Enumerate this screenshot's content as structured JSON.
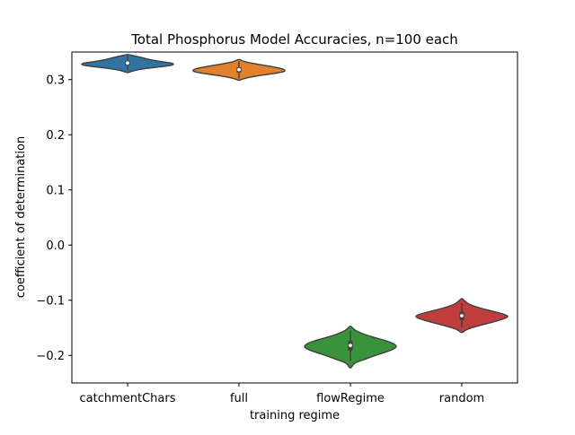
{
  "chart_data": {
    "type": "violin",
    "title": "Total Phosphorus Model Accuracies, n=100 each",
    "xlabel": "training regime",
    "ylabel": "coefficient of determination",
    "ylim": [
      -0.25,
      0.35
    ],
    "yticks": [
      -0.2,
      -0.1,
      0.0,
      0.1,
      0.2,
      0.3
    ],
    "ytick_labels": [
      "−0.2",
      "−0.1",
      "0.0",
      "0.1",
      "0.2",
      "0.3"
    ],
    "grid": false,
    "categories": [
      "catchmentChars",
      "full",
      "flowRegime",
      "random"
    ],
    "series": [
      {
        "category": "catchmentChars",
        "color": "#3274a1",
        "median": 0.33,
        "q1": 0.326,
        "q3": 0.334,
        "whisker_low": 0.317,
        "whisker_high": 0.343,
        "density": [
          [
            0.313,
            0.02
          ],
          [
            0.317,
            0.18
          ],
          [
            0.32,
            0.4
          ],
          [
            0.323,
            0.7
          ],
          [
            0.326,
            0.95
          ],
          [
            0.328,
            1.0
          ],
          [
            0.33,
            0.95
          ],
          [
            0.333,
            0.7
          ],
          [
            0.336,
            0.5
          ],
          [
            0.339,
            0.36
          ],
          [
            0.342,
            0.2
          ],
          [
            0.345,
            0.03
          ]
        ]
      },
      {
        "category": "full",
        "color": "#e1812c",
        "median": 0.318,
        "q1": 0.313,
        "q3": 0.322,
        "whisker_low": 0.302,
        "whisker_high": 0.333,
        "density": [
          [
            0.299,
            0.02
          ],
          [
            0.302,
            0.12
          ],
          [
            0.306,
            0.35
          ],
          [
            0.31,
            0.68
          ],
          [
            0.314,
            0.95
          ],
          [
            0.317,
            1.0
          ],
          [
            0.32,
            0.92
          ],
          [
            0.324,
            0.68
          ],
          [
            0.328,
            0.4
          ],
          [
            0.332,
            0.15
          ],
          [
            0.336,
            0.02
          ]
        ]
      },
      {
        "category": "flowRegime",
        "color": "#3a923a",
        "median": -0.182,
        "q1": -0.191,
        "q3": -0.174,
        "whisker_low": -0.21,
        "whisker_high": -0.155,
        "density": [
          [
            -0.222,
            0.02
          ],
          [
            -0.214,
            0.1
          ],
          [
            -0.206,
            0.35
          ],
          [
            -0.198,
            0.62
          ],
          [
            -0.19,
            0.9
          ],
          [
            -0.184,
            1.0
          ],
          [
            -0.178,
            0.92
          ],
          [
            -0.172,
            0.72
          ],
          [
            -0.166,
            0.46
          ],
          [
            -0.16,
            0.25
          ],
          [
            -0.154,
            0.1
          ],
          [
            -0.148,
            0.02
          ]
        ]
      },
      {
        "category": "random",
        "color": "#c03d3e",
        "median": -0.128,
        "q1": -0.136,
        "q3": -0.121,
        "whisker_low": -0.15,
        "whisker_high": -0.105,
        "density": [
          [
            -0.158,
            0.02
          ],
          [
            -0.152,
            0.14
          ],
          [
            -0.146,
            0.38
          ],
          [
            -0.14,
            0.66
          ],
          [
            -0.134,
            0.9
          ],
          [
            -0.129,
            1.0
          ],
          [
            -0.124,
            0.86
          ],
          [
            -0.118,
            0.58
          ],
          [
            -0.112,
            0.32
          ],
          [
            -0.106,
            0.14
          ],
          [
            -0.098,
            0.02
          ]
        ]
      }
    ]
  }
}
